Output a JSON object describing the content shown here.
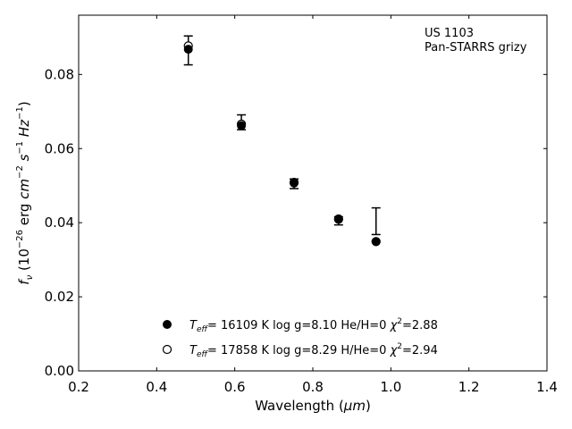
{
  "chart_data": {
    "type": "scatter",
    "xlabel_main": "Wavelength (",
    "xlabel_unit": "μm",
    "xlabel_close": ")",
    "ylabel_f": "f",
    "ylabel_nu": "ν",
    "ylabel_rest": " (10",
    "ylabel_exp1": "−26",
    "ylabel_erg": " erg ",
    "ylabel_cm": "cm",
    "ylabel_exp2": "−2",
    "ylabel_s": " s",
    "ylabel_exp3": "−1",
    "ylabel_hz": " Hz",
    "ylabel_exp4": "−1",
    "ylabel_close": ")",
    "xlim": [
      0.2,
      1.4
    ],
    "ylim": [
      0.0,
      0.096
    ],
    "xticks": [
      0.2,
      0.4,
      0.6,
      0.8,
      1.0,
      1.2,
      1.4
    ],
    "xtick_labels": [
      "0.2",
      "0.4",
      "0.6",
      "0.8",
      "1.0",
      "1.2",
      "1.4"
    ],
    "yticks": [
      0.0,
      0.02,
      0.04,
      0.06,
      0.08
    ],
    "ytick_labels": [
      "0.00",
      "0.02",
      "0.04",
      "0.06",
      "0.08"
    ],
    "annotation_line1": "US 1103",
    "annotation_line2": "Pan-STARRS grizy",
    "observed": {
      "x": [
        0.481,
        0.617,
        0.752,
        0.866,
        0.962
      ],
      "y": [
        0.0865,
        0.0671,
        0.0505,
        0.0405,
        0.0404
      ],
      "yerr": [
        0.0039,
        0.002,
        0.0013,
        0.0011,
        0.0036
      ]
    },
    "series": [
      {
        "marker": "filled",
        "x": [
          0.481,
          0.617,
          0.752,
          0.866,
          0.962
        ],
        "y": [
          0.0868,
          0.0662,
          0.0507,
          0.0409,
          0.0349
        ],
        "legend_teff_prefix": "T",
        "legend_teff_sub": "eff",
        "legend_text": "= 16109 K  log g=8.10  He/H=0  ",
        "legend_chi": "χ",
        "legend_chi_exp": "2",
        "legend_chi_val": "=2.88"
      },
      {
        "marker": "open",
        "x": [
          0.481,
          0.617,
          0.752,
          0.866,
          0.962
        ],
        "y": [
          0.0877,
          0.0666,
          0.0509,
          0.041,
          0.0349
        ],
        "legend_teff_prefix": "T",
        "legend_teff_sub": "eff",
        "legend_text": "= 17858 K  log g=8.29  H/He=0  ",
        "legend_chi": "χ",
        "legend_chi_exp": "2",
        "legend_chi_val": "=2.94"
      }
    ],
    "legend_placement": "lower-center",
    "grid": false
  }
}
